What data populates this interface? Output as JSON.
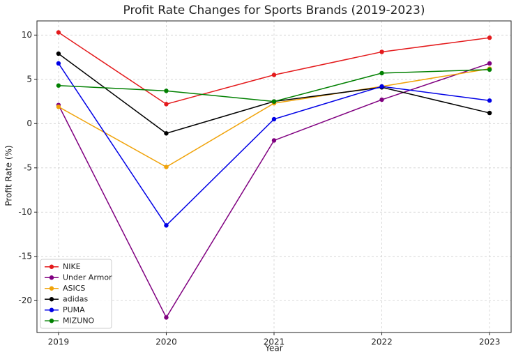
{
  "chart_data": {
    "type": "line",
    "title": "Profit Rate Changes for Sports Brands (2019-2023)",
    "x_label": "Year",
    "y_label": "Profit Rate (%)",
    "x": [
      2019,
      2020,
      2021,
      2022,
      2023
    ],
    "series": [
      {
        "name": "NIKE",
        "color": "#e41a1c",
        "values": [
          10.3,
          2.2,
          5.5,
          8.1,
          9.7
        ]
      },
      {
        "name": "Under Armor",
        "color": "#800080",
        "values": [
          2.1,
          -21.9,
          -1.9,
          2.7,
          6.8
        ]
      },
      {
        "name": "ASICS",
        "color": "#f0a30a",
        "values": [
          1.9,
          -4.9,
          2.3,
          4.2,
          6.2
        ]
      },
      {
        "name": "adidas",
        "color": "#000000",
        "values": [
          7.9,
          -1.1,
          2.5,
          4.1,
          1.2
        ]
      },
      {
        "name": "PUMA",
        "color": "#0000e6",
        "values": [
          6.8,
          -11.5,
          0.5,
          4.2,
          2.6
        ]
      },
      {
        "name": "MIZUNO",
        "color": "#008000",
        "values": [
          4.3,
          3.7,
          2.5,
          5.7,
          6.1
        ]
      }
    ],
    "xlim": [
      2018.8,
      2023.2
    ],
    "xticks": [
      2019,
      2020,
      2021,
      2022,
      2023
    ],
    "ylim": [
      -23.6,
      11.6
    ],
    "yticks": [
      -20,
      -15,
      -10,
      -5,
      0,
      5,
      10
    ],
    "grid": true,
    "legend": "lower left"
  }
}
